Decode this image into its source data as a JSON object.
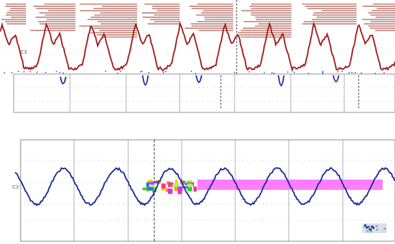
{
  "top_trace": {
    "channel_label": "C3",
    "colors": {
      "waveform": "#a32020",
      "header_bands": "#b2665a",
      "dropouts": "#2a35a0",
      "grid": "#777777",
      "cursor": "#333333"
    }
  },
  "bottom_trace": {
    "channel_label": "C3",
    "colors": {
      "waveform": "#1f2f9a",
      "overlay": "#ff66ff",
      "grid": "#777777",
      "cursor": "#333333"
    }
  },
  "icons": {
    "overlay_badge": "color-noise-icon",
    "corner_badge": "scope-logo-icon"
  }
}
